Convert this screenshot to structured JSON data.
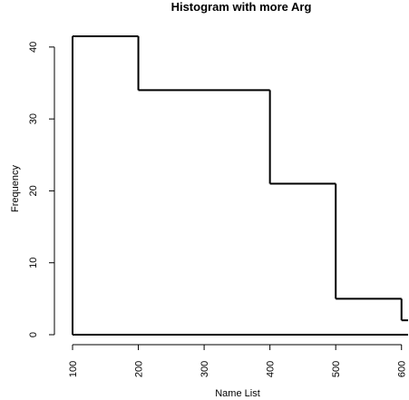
{
  "chart_data": {
    "type": "line",
    "title": "Histogram with more Arg",
    "xlabel": "Name List",
    "ylabel": "Frequency",
    "xlim": [
      100,
      610
    ],
    "ylim": [
      0,
      42
    ],
    "x_ticks": [
      100,
      200,
      300,
      400,
      500,
      600
    ],
    "x_tick_labels": [
      "100",
      "200",
      "300",
      "400",
      "500",
      "600"
    ],
    "y_ticks": [
      0,
      10,
      20,
      30,
      40
    ],
    "y_tick_labels": [
      "0",
      "10",
      "20",
      "30",
      "40"
    ],
    "step_style": "step-after",
    "line_color": "#000000",
    "series": [
      {
        "x": [
          100,
          200,
          400,
          500,
          600,
          610
        ],
        "values": [
          41.5,
          34,
          21,
          5,
          2,
          2
        ]
      }
    ]
  }
}
